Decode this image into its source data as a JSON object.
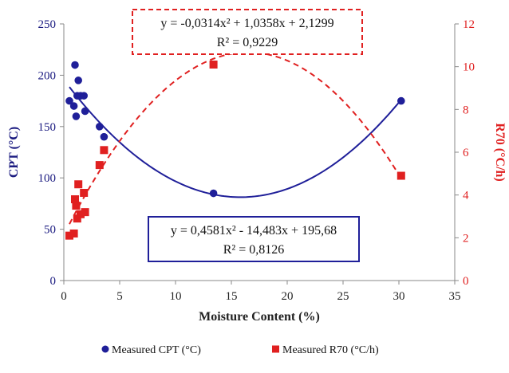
{
  "chart_data": {
    "type": "scatter",
    "xlabel": "Moisture Content (%)",
    "ylabel_left": "CPT (°C)",
    "ylabel_right": "R70 (°C/h)",
    "xlim": [
      0,
      35
    ],
    "ylim_left": [
      0,
      250
    ],
    "ylim_right": [
      0,
      12
    ],
    "x_ticks": [
      0,
      5,
      10,
      15,
      20,
      25,
      30,
      35
    ],
    "y_ticks_left": [
      0,
      50,
      100,
      150,
      200,
      250
    ],
    "y_ticks_right": [
      0,
      2,
      4,
      6,
      8,
      10,
      12
    ],
    "grid": false,
    "legend_position": "bottom",
    "colors": {
      "cpt": "#1f1f99",
      "r70": "#e02020"
    },
    "series": [
      {
        "name": "Measured CPT (°C)",
        "axis": "left",
        "marker": "circle",
        "x": [
          0.5,
          0.9,
          1.0,
          1.1,
          1.2,
          1.3,
          1.5,
          1.8,
          1.9,
          3.2,
          3.6,
          13.4,
          30.2
        ],
        "y": [
          175,
          170,
          210,
          160,
          180,
          195,
          180,
          180,
          165,
          150,
          140,
          85,
          175
        ]
      },
      {
        "name": "Measured R70 (°C/h)",
        "axis": "right",
        "marker": "square",
        "x": [
          0.5,
          0.9,
          1.0,
          1.1,
          1.2,
          1.3,
          1.5,
          1.8,
          1.9,
          3.2,
          3.6,
          13.4,
          30.2
        ],
        "y": [
          2.1,
          2.2,
          3.8,
          3.5,
          2.9,
          4.5,
          3.1,
          4.1,
          3.2,
          5.4,
          6.1,
          10.1,
          4.9
        ]
      }
    ],
    "trendlines": [
      {
        "series": "Measured CPT (°C)",
        "axis": "left",
        "style": "solid",
        "coefficients": [
          0.4581,
          -14.483,
          195.68
        ],
        "x_range": [
          0.5,
          30.2
        ],
        "equation": "y = 0,4581x² - 14,483x + 195,68",
        "r2": "R² = 0,8126",
        "box_position": "lower-middle"
      },
      {
        "series": "Measured R70 (°C/h)",
        "axis": "right",
        "style": "dashed",
        "coefficients": [
          -0.0314,
          1.0358,
          2.1299
        ],
        "x_range": [
          0.5,
          30.2
        ],
        "equation": "y = -0,0314x² + 1,0358x + 2,1299",
        "r2": "R² = 0,9229",
        "box_position": "top-middle"
      }
    ]
  }
}
